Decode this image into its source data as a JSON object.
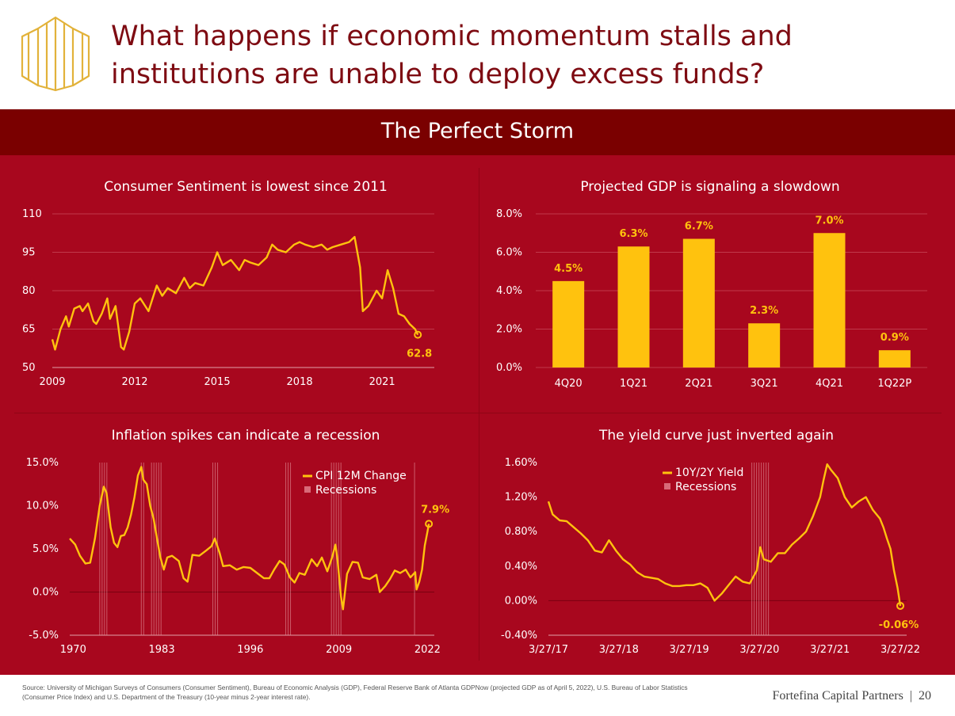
{
  "headline": "What happens if economic momentum stalls and institutions are unable to deploy excess funds?",
  "banner_title": "The Perfect Storm",
  "colors": {
    "accent": "#ffc20e",
    "panel": "#a8071e",
    "banner": "#7a0000",
    "title": "#7e0b12"
  },
  "logo_icon": "building-columns-icon",
  "footer": {
    "source": "Source: University of Michigan Surveys of Consumers (Consumer Sentiment), Bureau of Economic Analysis (GDP), Federal Reserve Bank of Atlanta GDPNow (projected GDP as of April 5, 2022), U.S. Bureau of Labor Statistics (Consumer Price Index) and U.S. Department of the Treasury (10-year minus 2-year interest rate).",
    "brand": "Fortefina Capital Partners",
    "separator": "|",
    "page": "20"
  },
  "chart_data": [
    {
      "type": "line",
      "title": "Consumer Sentiment is lowest since 2011",
      "xlabel": "",
      "ylabel": "",
      "xlim": [
        2009,
        2022.9
      ],
      "ylim": [
        50,
        110
      ],
      "y_ticks": [
        "110",
        "95",
        "80",
        "65",
        "50"
      ],
      "y_tick_values": [
        110,
        95,
        80,
        65,
        50
      ],
      "x_ticks": [
        "2009",
        "2012",
        "2015",
        "2018",
        "2021"
      ],
      "x_tick_values": [
        2009,
        2012,
        2015,
        2018,
        2021
      ],
      "end_label": "62.8",
      "x": [
        2009.0,
        2009.1,
        2009.3,
        2009.5,
        2009.6,
        2009.8,
        2010.0,
        2010.1,
        2010.3,
        2010.5,
        2010.6,
        2010.8,
        2011.0,
        2011.1,
        2011.3,
        2011.5,
        2011.6,
        2011.8,
        2012.0,
        2012.2,
        2012.5,
        2012.8,
        2013.0,
        2013.2,
        2013.5,
        2013.8,
        2014.0,
        2014.2,
        2014.5,
        2014.8,
        2015.0,
        2015.2,
        2015.5,
        2015.8,
        2016.0,
        2016.2,
        2016.5,
        2016.8,
        2017.0,
        2017.2,
        2017.5,
        2017.8,
        2018.0,
        2018.2,
        2018.5,
        2018.8,
        2019.0,
        2019.2,
        2019.5,
        2019.8,
        2020.0,
        2020.2,
        2020.3,
        2020.5,
        2020.8,
        2021.0,
        2021.2,
        2021.4,
        2021.6,
        2021.8,
        2022.0,
        2022.2,
        2022.3
      ],
      "y": [
        61,
        57,
        65,
        70,
        66,
        73,
        74,
        72,
        75,
        68,
        67,
        71,
        77,
        69,
        74,
        58,
        57,
        64,
        75,
        77,
        72,
        82,
        78,
        81,
        79,
        85,
        81,
        83,
        82,
        89,
        95,
        90,
        92,
        88,
        92,
        91,
        90,
        93,
        98,
        96,
        95,
        98,
        99,
        98,
        97,
        98,
        96,
        97,
        98,
        99,
        101,
        89,
        72,
        74,
        80,
        77,
        88,
        81,
        71,
        70,
        67,
        65,
        62.8
      ]
    },
    {
      "type": "bar",
      "title": "Projected GDP is signaling a slowdown",
      "categories": [
        "4Q20",
        "1Q21",
        "2Q21",
        "3Q21",
        "4Q21",
        "1Q22P"
      ],
      "values": [
        4.5,
        6.3,
        6.7,
        2.3,
        7.0,
        0.9
      ],
      "value_labels": [
        "4.5%",
        "6.3%",
        "6.7%",
        "2.3%",
        "7.0%",
        "0.9%"
      ],
      "ylim": [
        0,
        8
      ],
      "y_ticks": [
        "8.0%",
        "6.0%",
        "4.0%",
        "2.0%",
        "0.0%"
      ],
      "y_tick_values": [
        8,
        6,
        4,
        2,
        0
      ],
      "xlabel": "",
      "ylabel": ""
    },
    {
      "type": "line",
      "title": "Inflation spikes can indicate a recession",
      "xlim": [
        1969.5,
        2023
      ],
      "ylim": [
        -5,
        15
      ],
      "y_ticks": [
        "15.0%",
        "10.0%",
        "5.0%",
        "0.0%",
        "-5.0%"
      ],
      "y_tick_values": [
        15,
        10,
        5,
        0,
        -5
      ],
      "x_ticks": [
        "1970",
        "1983",
        "1996",
        "2009",
        "2022"
      ],
      "x_tick_values": [
        1970,
        1983,
        1996,
        2009,
        2022
      ],
      "legend": [
        "CPI 12M Change",
        "Recessions"
      ],
      "legend_position": "top-right",
      "end_label": "7.9%",
      "recessions": [
        [
          1973.9,
          1975.2
        ],
        [
          1980.0,
          1980.6
        ],
        [
          1981.5,
          1982.9
        ],
        [
          1990.5,
          1991.2
        ],
        [
          2001.2,
          2001.9
        ],
        [
          2007.9,
          2009.5
        ],
        [
          2020.1,
          2020.4
        ]
      ],
      "x": [
        1969.5,
        1970.3,
        1971.0,
        1971.8,
        1972.5,
        1973.2,
        1973.9,
        1974.5,
        1974.9,
        1975.5,
        1976.0,
        1976.5,
        1977.0,
        1977.5,
        1978.0,
        1978.5,
        1979.0,
        1979.5,
        1980.0,
        1980.3,
        1980.8,
        1981.3,
        1981.8,
        1982.3,
        1982.8,
        1983.3,
        1983.8,
        1984.5,
        1985.5,
        1986.2,
        1986.8,
        1987.5,
        1988.5,
        1989.5,
        1990.3,
        1990.8,
        1991.5,
        1992.0,
        1993.0,
        1994.0,
        1995.0,
        1996.0,
        1997.0,
        1998.0,
        1998.8,
        1999.5,
        2000.3,
        2001.0,
        2001.8,
        2002.5,
        2003.2,
        2004.0,
        2005.0,
        2005.8,
        2006.5,
        2007.3,
        2008.0,
        2008.5,
        2008.8,
        2009.3,
        2009.6,
        2010.2,
        2011.0,
        2011.8,
        2012.5,
        2013.5,
        2014.5,
        2015.0,
        2015.8,
        2016.5,
        2017.2,
        2018.0,
        2018.8,
        2019.5,
        2020.2,
        2020.4,
        2020.8,
        2021.2,
        2021.6,
        2022.0,
        2022.2
      ],
      "y": [
        6.2,
        5.5,
        4.2,
        3.3,
        3.4,
        6.2,
        10.0,
        12.2,
        11.5,
        7.5,
        5.7,
        5.2,
        6.5,
        6.6,
        7.5,
        9.0,
        11.0,
        13.5,
        14.5,
        13.0,
        12.5,
        10.0,
        8.5,
        6.2,
        4.0,
        2.6,
        4.0,
        4.2,
        3.6,
        1.6,
        1.2,
        4.3,
        4.2,
        4.8,
        5.3,
        6.2,
        4.5,
        3.0,
        3.1,
        2.6,
        2.9,
        2.8,
        2.2,
        1.6,
        1.6,
        2.6,
        3.6,
        3.2,
        1.7,
        1.1,
        2.2,
        2.0,
        3.8,
        3.0,
        4.0,
        2.4,
        4.0,
        5.5,
        3.7,
        -0.5,
        -2.0,
        2.1,
        3.5,
        3.4,
        1.7,
        1.5,
        2.0,
        0.0,
        0.7,
        1.5,
        2.5,
        2.2,
        2.6,
        1.7,
        2.3,
        0.3,
        1.2,
        2.6,
        5.4,
        7.0,
        7.9
      ]
    },
    {
      "type": "line",
      "title": "The yield curve just inverted again",
      "xlim": [
        2017.24,
        2022.33
      ],
      "ylim": [
        -0.4,
        1.6
      ],
      "y_ticks": [
        "1.60%",
        "1.20%",
        "0.80%",
        "0.40%",
        "0.00%",
        "-0.40%"
      ],
      "y_tick_values": [
        1.6,
        1.2,
        0.8,
        0.4,
        0.0,
        -0.4
      ],
      "x_ticks": [
        "3/27/17",
        "3/27/18",
        "3/27/19",
        "3/27/20",
        "3/27/21",
        "3/27/22"
      ],
      "x_tick_values": [
        2017.24,
        2018.24,
        2019.24,
        2020.24,
        2021.24,
        2022.24
      ],
      "legend": [
        "10Y/2Y Yield",
        "Recessions"
      ],
      "legend_position": "top-left",
      "end_label": "-0.06%",
      "recessions": [
        [
          2020.13,
          2020.38
        ]
      ],
      "x": [
        2017.24,
        2017.3,
        2017.4,
        2017.5,
        2017.6,
        2017.7,
        2017.8,
        2017.9,
        2018.0,
        2018.1,
        2018.2,
        2018.3,
        2018.4,
        2018.5,
        2018.6,
        2018.8,
        2018.9,
        2019.0,
        2019.1,
        2019.2,
        2019.3,
        2019.4,
        2019.5,
        2019.6,
        2019.7,
        2019.8,
        2019.9,
        2020.0,
        2020.1,
        2020.2,
        2020.25,
        2020.3,
        2020.4,
        2020.5,
        2020.6,
        2020.7,
        2020.8,
        2020.9,
        2021.0,
        2021.1,
        2021.15,
        2021.2,
        2021.25,
        2021.35,
        2021.45,
        2021.55,
        2021.65,
        2021.75,
        2021.85,
        2021.95,
        2022.0,
        2022.05,
        2022.1,
        2022.15,
        2022.2,
        2022.24
      ],
      "y": [
        1.15,
        1.0,
        0.93,
        0.92,
        0.85,
        0.78,
        0.7,
        0.58,
        0.56,
        0.7,
        0.58,
        0.48,
        0.42,
        0.33,
        0.28,
        0.25,
        0.2,
        0.17,
        0.17,
        0.18,
        0.18,
        0.2,
        0.15,
        0.0,
        0.08,
        0.18,
        0.28,
        0.22,
        0.2,
        0.35,
        0.62,
        0.48,
        0.45,
        0.55,
        0.55,
        0.65,
        0.72,
        0.8,
        0.98,
        1.2,
        1.4,
        1.58,
        1.52,
        1.42,
        1.2,
        1.08,
        1.15,
        1.2,
        1.05,
        0.95,
        0.85,
        0.72,
        0.6,
        0.35,
        0.15,
        -0.06
      ]
    }
  ]
}
